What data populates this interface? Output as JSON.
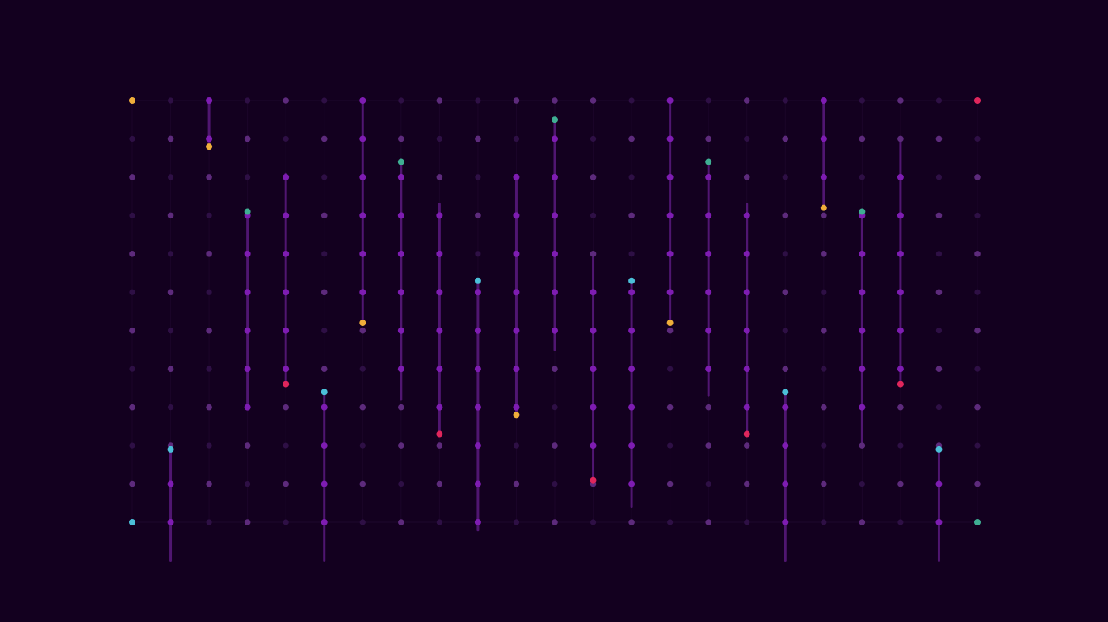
{
  "palette": {
    "background": "#13001f",
    "grid_line": "#2a0f3d",
    "dot_dim": "#2e0f45",
    "dot_mid": "#5d2a7c",
    "dot_bright": "#7e1cb2",
    "bar_line": "#5a1a7f",
    "marker_amber": "#efae3a",
    "marker_teal": "#3fae93",
    "marker_cyan": "#4bbfd8",
    "marker_red": "#e0265c"
  },
  "grid": {
    "columns": 23,
    "rows": 12
  },
  "columns": [
    {
      "span_from": 0,
      "span_to": 0,
      "marker_row": 0,
      "marker_color": "marker_amber"
    },
    {
      "span_from": 9.1,
      "span_to": 12.0,
      "marker_row": 9.1,
      "marker_color": "marker_cyan"
    },
    {
      "span_from": 0,
      "span_to": 1.2,
      "marker_row": 1.2,
      "marker_color": "marker_amber"
    },
    {
      "span_from": 2.9,
      "span_to": 8.0,
      "marker_row": 2.9,
      "marker_color": "marker_teal"
    },
    {
      "span_from": 1.9,
      "span_to": 7.4,
      "marker_row": 7.4,
      "marker_color": "marker_red"
    },
    {
      "span_from": 7.6,
      "span_to": 12.0,
      "marker_row": 7.6,
      "marker_color": "marker_cyan"
    },
    {
      "span_from": 0,
      "span_to": 5.8,
      "marker_row": 5.8,
      "marker_color": "marker_amber"
    },
    {
      "span_from": 1.6,
      "span_to": 7.8,
      "marker_row": 1.6,
      "marker_color": "marker_teal"
    },
    {
      "span_from": 2.7,
      "span_to": 8.7,
      "marker_row": 8.7,
      "marker_color": "marker_red"
    },
    {
      "span_from": 4.7,
      "span_to": 11.2,
      "marker_row": 4.7,
      "marker_color": "marker_cyan"
    },
    {
      "span_from": 2.0,
      "span_to": 8.2,
      "marker_row": 8.2,
      "marker_color": "marker_amber"
    },
    {
      "span_from": 0.5,
      "span_to": 6.5,
      "marker_row": 0.5,
      "marker_color": "marker_teal"
    },
    {
      "span_from": 4.1,
      "span_to": 9.9,
      "marker_row": 9.9,
      "marker_color": "marker_red"
    },
    {
      "span_from": 4.7,
      "span_to": 10.6,
      "marker_row": 4.7,
      "marker_color": "marker_cyan"
    },
    {
      "span_from": 0,
      "span_to": 5.8,
      "marker_row": 5.8,
      "marker_color": "marker_amber"
    },
    {
      "span_from": 1.6,
      "span_to": 7.7,
      "marker_row": 1.6,
      "marker_color": "marker_teal"
    },
    {
      "span_from": 2.7,
      "span_to": 8.7,
      "marker_row": 8.7,
      "marker_color": "marker_red"
    },
    {
      "span_from": 7.6,
      "span_to": 12.0,
      "marker_row": 7.6,
      "marker_color": "marker_cyan"
    },
    {
      "span_from": 0,
      "span_to": 2.8,
      "marker_row": 2.8,
      "marker_color": "marker_amber"
    },
    {
      "span_from": 2.9,
      "span_to": 8.9,
      "marker_row": 2.9,
      "marker_color": "marker_teal"
    },
    {
      "span_from": 1.1,
      "span_to": 7.4,
      "marker_row": 7.4,
      "marker_color": "marker_red"
    },
    {
      "span_from": 9.1,
      "span_to": 12.0,
      "marker_row": 9.1,
      "marker_color": "marker_cyan"
    },
    {
      "span_from": 0,
      "span_to": 0,
      "marker_row": 0,
      "marker_color": "marker_red"
    }
  ],
  "corner_markers": [
    {
      "col": 0,
      "row": 11,
      "color": "marker_cyan"
    },
    {
      "col": 22,
      "row": 11,
      "color": "marker_teal"
    }
  ]
}
